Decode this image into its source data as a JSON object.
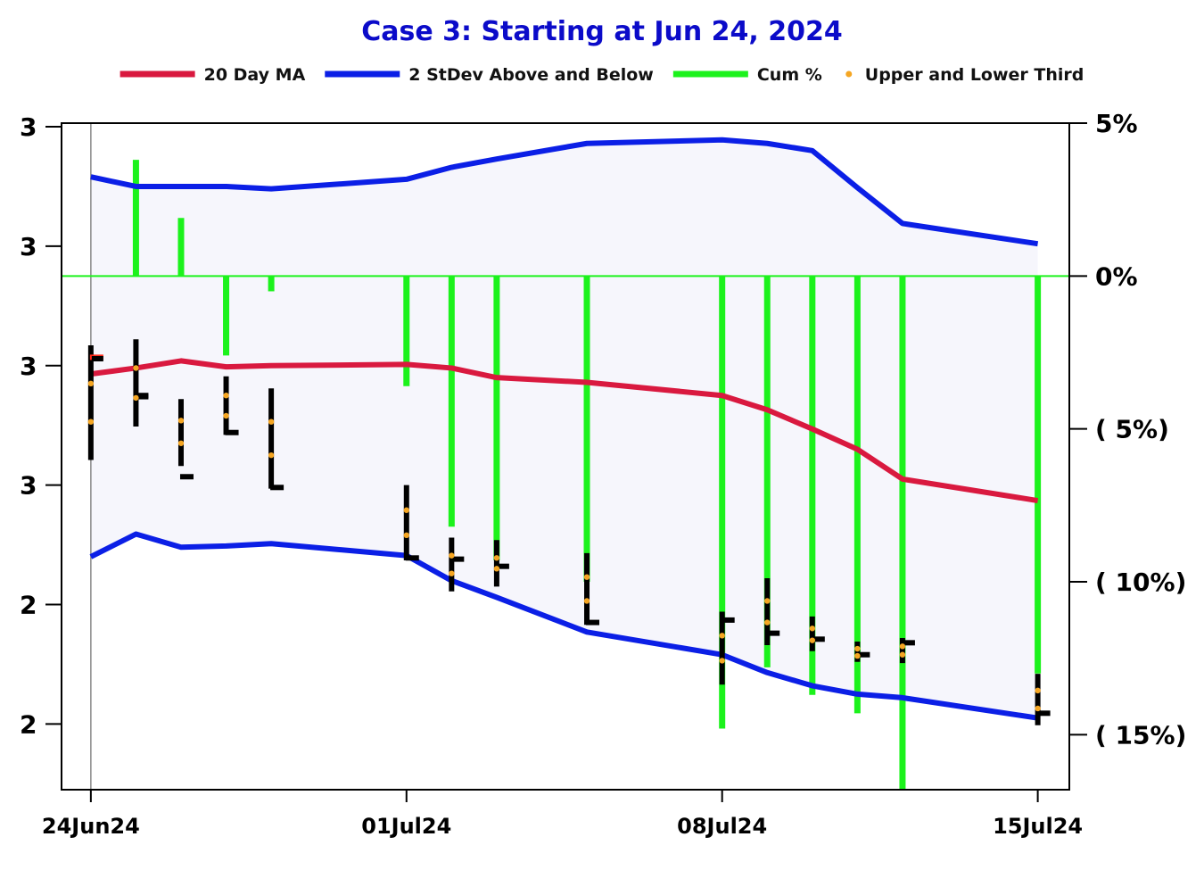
{
  "chart_data": {
    "type": "line",
    "title": "Case 3:  Starting at Jun 24, 2024",
    "legend": [
      {
        "label": "20 Day MA",
        "color": "#d9193f",
        "kind": "line"
      },
      {
        "label": "2 StDev Above and Below",
        "color": "#0b1fe6",
        "kind": "line"
      },
      {
        "label": "Cum %",
        "color": "#1cf21c",
        "kind": "line"
      },
      {
        "label": "Upper and Lower Third",
        "color": "#f5a623",
        "kind": "dot"
      }
    ],
    "legend_position": "top",
    "x_dates": [
      "24Jun24",
      "25Jun24",
      "26Jun24",
      "27Jun24",
      "28Jun24",
      "01Jul24",
      "02Jul24",
      "03Jul24",
      "05Jul24",
      "08Jul24",
      "09Jul24",
      "10Jul24",
      "11Jul24",
      "12Jul24",
      "15Jul24"
    ],
    "x_positions": [
      0,
      1,
      2,
      3,
      4,
      7,
      8,
      9,
      11,
      14,
      15,
      16,
      17,
      18,
      21
    ],
    "x_range": [
      -0.65,
      21.7
    ],
    "x_tick_labels": [
      {
        "pos": 0,
        "label": "24Jun24"
      },
      {
        "pos": 7,
        "label": "01Jul24"
      },
      {
        "pos": 14,
        "label": "08Jul24"
      },
      {
        "pos": 21,
        "label": "15Jul24"
      }
    ],
    "left_axis": {
      "range": [
        2.62,
        3.178
      ],
      "ticks": [
        {
          "value": 3.175,
          "label": "3"
        },
        {
          "value": 3.075,
          "label": "3"
        },
        {
          "value": 2.975,
          "label": "3"
        },
        {
          "value": 2.875,
          "label": "3"
        },
        {
          "value": 2.775,
          "label": "2"
        },
        {
          "value": 2.675,
          "label": "2"
        }
      ]
    },
    "right_axis": {
      "range": [
        -0.168,
        0.05
      ],
      "ticks": [
        {
          "value": 0.05,
          "label": "5%"
        },
        {
          "value": 0.0,
          "label": "0%"
        },
        {
          "value": -0.05,
          "label": "(   5%)"
        },
        {
          "value": -0.1,
          "label": "(  10%)"
        },
        {
          "value": -0.15,
          "label": "(  15%)"
        }
      ]
    },
    "series": [
      {
        "name": "20 Day MA",
        "axis": "left",
        "values": [
          2.968,
          2.973,
          2.979,
          2.974,
          2.975,
          2.976,
          2.973,
          2.965,
          2.961,
          2.95,
          2.938,
          2.922,
          2.905,
          2.88,
          2.862
        ]
      },
      {
        "name": "2 StDev Above and Below",
        "part": "upper",
        "axis": "left",
        "values": [
          3.133,
          3.125,
          3.125,
          3.125,
          3.123,
          3.131,
          3.141,
          3.148,
          3.161,
          3.164,
          3.161,
          3.155,
          3.124,
          3.094,
          3.077
        ]
      },
      {
        "name": "2 StDev Above and Below",
        "part": "lower",
        "axis": "left",
        "values": [
          2.815,
          2.834,
          2.823,
          2.824,
          2.826,
          2.816,
          2.795,
          2.781,
          2.752,
          2.733,
          2.718,
          2.707,
          2.7,
          2.697,
          2.68
        ]
      },
      {
        "name": "Cum %",
        "axis": "right",
        "values": [
          null,
          0.038,
          0.019,
          -0.026,
          -0.005,
          -0.036,
          -0.082,
          -0.093,
          -0.1,
          -0.148,
          -0.128,
          -0.137,
          -0.143,
          -0.168,
          -0.13
        ]
      }
    ],
    "price_bars": {
      "open": [
        null,
        2.95,
        null,
        null,
        null,
        null,
        null,
        null,
        null,
        null,
        null,
        null,
        null,
        null,
        null
      ],
      "high": [
        2.992,
        2.997,
        2.947,
        2.966,
        2.956,
        2.875,
        2.831,
        2.829,
        2.818,
        2.769,
        2.797,
        2.765,
        2.744,
        2.747,
        2.717
      ],
      "low": [
        2.896,
        2.924,
        2.891,
        2.917,
        2.872,
        2.812,
        2.786,
        2.79,
        2.758,
        2.708,
        2.741,
        2.736,
        2.727,
        2.726,
        2.674
      ],
      "close": [
        2.982,
        2.949,
        2.882,
        2.919,
        2.873,
        2.814,
        2.813,
        2.807,
        2.76,
        2.762,
        2.751,
        2.746,
        2.733,
        2.743,
        2.684
      ],
      "upper_third": [
        2.96,
        2.973,
        2.929,
        2.95,
        2.928,
        2.854,
        2.816,
        2.814,
        2.798,
        2.749,
        2.778,
        2.755,
        2.738,
        2.74,
        2.703
      ],
      "lower_third": [
        2.928,
        2.948,
        2.91,
        2.933,
        2.9,
        2.833,
        2.801,
        2.805,
        2.778,
        2.728,
        2.76,
        2.745,
        2.732,
        2.733,
        2.688
      ],
      "highlight_close_index": 0
    },
    "grid": false,
    "start_marker_x": 0
  },
  "colors": {
    "ma": "#d9193f",
    "band": "#0b1fe6",
    "band_fill": "#f6f6fc",
    "cum": "#1cf21c",
    "thirds": "#f5a623",
    "price_bar": "#000000",
    "highlight": "#ff2a1a",
    "title": "#0b0bc9"
  }
}
